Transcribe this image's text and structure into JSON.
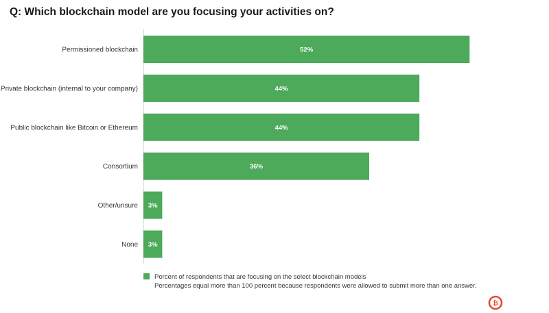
{
  "title": "Q: Which blockchain model are you focusing your activities on?",
  "colors": {
    "bar": "#4caa5a",
    "axis": "#cfcfcf",
    "logo": "#e8492f"
  },
  "chart_data": {
    "type": "bar",
    "orientation": "horizontal",
    "categories": [
      "Permissioned blockchain",
      "Private blockchain (internal to your company)",
      "Public blockchain like Bitcoin or Ethereum",
      "Consortium",
      "Other/unsure",
      "None"
    ],
    "values": [
      52,
      44,
      44,
      36,
      3,
      3
    ],
    "value_labels": [
      "52%",
      "44%",
      "44%",
      "36%",
      "3%",
      "3%"
    ],
    "xlim": [
      0,
      100
    ],
    "grid": false,
    "legend": {
      "position": "bottom",
      "label": "Percent of respondents that are focusing on the select blockchain models"
    }
  },
  "note": "Percentages equal more than 100 percent because respondents were allowed to submit more than one answer.",
  "logo_icon": "bitcoin-logo-icon"
}
